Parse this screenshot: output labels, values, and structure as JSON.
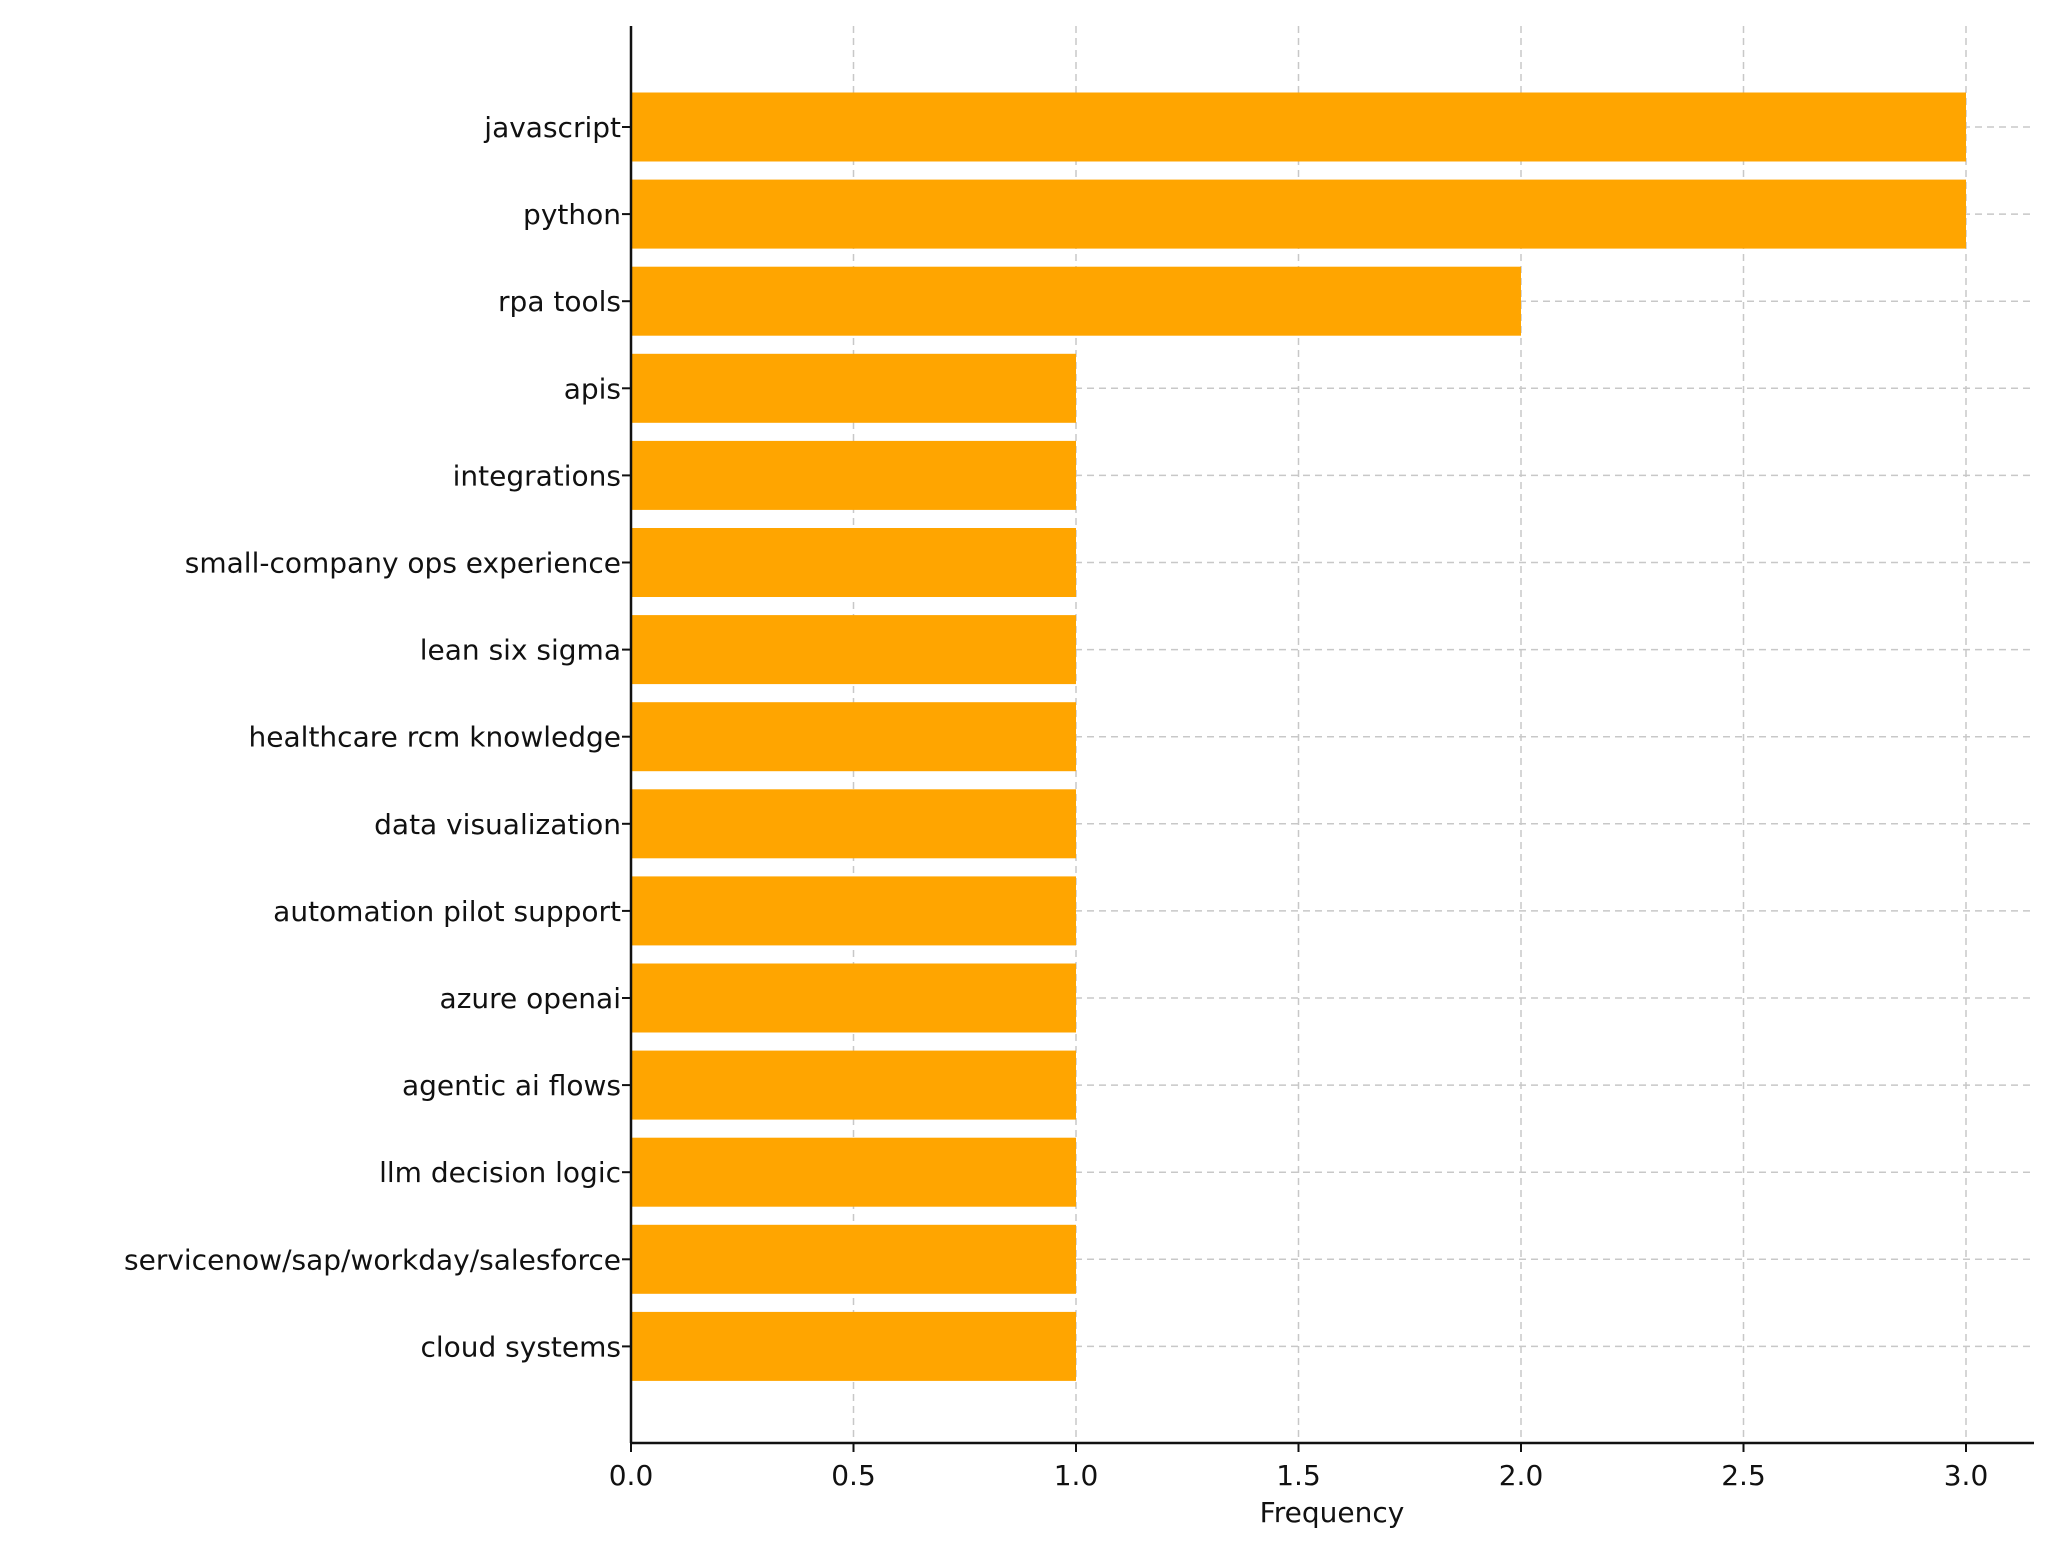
{
  "chart_data": {
    "type": "bar",
    "orientation": "horizontal",
    "categories": [
      "javascript",
      "python",
      "rpa tools",
      "apis",
      "integrations",
      "small-company ops experience",
      "lean six sigma",
      "healthcare rcm knowledge",
      "data visualization",
      "automation pilot support",
      "azure openai",
      "agentic ai flows",
      "llm decision logic",
      "servicenow/sap/workday/salesforce",
      "cloud systems"
    ],
    "values": [
      3,
      3,
      2,
      1,
      1,
      1,
      1,
      1,
      1,
      1,
      1,
      1,
      1,
      1,
      1
    ],
    "xlabel": "Frequency",
    "ylabel": "",
    "title": "",
    "xlim": [
      0,
      3.15
    ],
    "xticks": [
      "0.0",
      "0.5",
      "1.0",
      "1.5",
      "2.0",
      "2.5",
      "3.0"
    ],
    "grid": true,
    "bar_color": "#FFA500"
  }
}
